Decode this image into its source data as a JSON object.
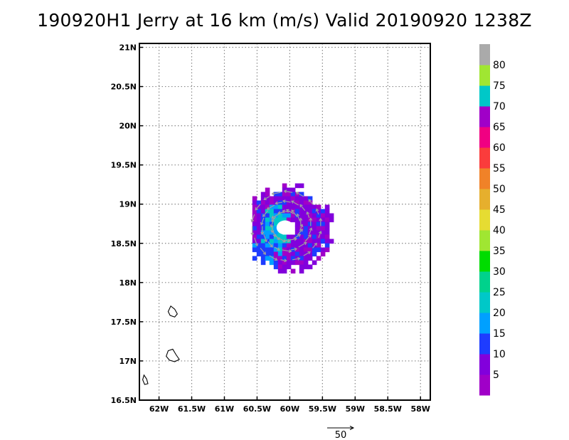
{
  "chart_data": {
    "type": "heatmap",
    "title": "190920H1 Jerry at 16 km (m/s) Valid 20190920  1238Z",
    "xlabel": "",
    "ylabel": "",
    "xlim": [
      -62.3,
      -57.85
    ],
    "ylim": [
      16.5,
      21.05
    ],
    "grid": true,
    "x_ticks": [
      {
        "value": -62.0,
        "label": "62W"
      },
      {
        "value": -61.5,
        "label": "61.5W"
      },
      {
        "value": -61.0,
        "label": "61W"
      },
      {
        "value": -60.5,
        "label": "60.5W"
      },
      {
        "value": -60.0,
        "label": "60W"
      },
      {
        "value": -59.5,
        "label": "59.5W"
      },
      {
        "value": -59.0,
        "label": "59W"
      },
      {
        "value": -58.5,
        "label": "58.5W"
      },
      {
        "value": -58.0,
        "label": "58W"
      }
    ],
    "y_ticks": [
      {
        "value": 16.5,
        "label": "16.5N"
      },
      {
        "value": 17.0,
        "label": "17N"
      },
      {
        "value": 17.5,
        "label": "17.5N"
      },
      {
        "value": 18.0,
        "label": "18N"
      },
      {
        "value": 18.5,
        "label": "18.5N"
      },
      {
        "value": 19.0,
        "label": "19N"
      },
      {
        "value": 19.5,
        "label": "19.5N"
      },
      {
        "value": 20.0,
        "label": "20N"
      },
      {
        "value": 20.5,
        "label": "20.5N"
      },
      {
        "value": 21.0,
        "label": "21N"
      }
    ],
    "colorbar": {
      "colors": [
        "#a000c8",
        "#8200dc",
        "#1e3cff",
        "#00a0ff",
        "#00c8c8",
        "#00d28c",
        "#00dc00",
        "#a0e632",
        "#e6dc32",
        "#e6af2d",
        "#f08228",
        "#fa3c3c",
        "#f00082",
        "#a000c8",
        "#00c8c8",
        "#a0e632",
        "#aaaaaa"
      ],
      "labels": [
        {
          "value": "5",
          "after_box": 1
        },
        {
          "value": "10",
          "after_box": 2
        },
        {
          "value": "15",
          "after_box": 3
        },
        {
          "value": "20",
          "after_box": 4
        },
        {
          "value": "25",
          "after_box": 5
        },
        {
          "value": "30",
          "after_box": 6
        },
        {
          "value": "35",
          "after_box": 7
        },
        {
          "value": "40",
          "after_box": 8
        },
        {
          "value": "45",
          "after_box": 9
        },
        {
          "value": "50",
          "after_box": 10
        },
        {
          "value": "55",
          "after_box": 11
        },
        {
          "value": "60",
          "after_box": 12
        },
        {
          "value": "65",
          "after_box": 13
        },
        {
          "value": "70",
          "after_box": 14
        },
        {
          "value": "75",
          "after_box": 15
        },
        {
          "value": "80",
          "after_box": 16
        }
      ]
    },
    "reference_vector": {
      "label": "50"
    },
    "storm_center": {
      "lon": -60.05,
      "lat": 18.72
    },
    "islands": [
      {
        "name": "island-1",
        "points": [
          [
            -61.82,
            17.7
          ],
          [
            -61.76,
            17.66
          ],
          [
            -61.72,
            17.6
          ],
          [
            -61.76,
            17.56
          ],
          [
            -61.83,
            17.58
          ],
          [
            -61.86,
            17.63
          ]
        ]
      },
      {
        "name": "island-2",
        "points": [
          [
            -61.86,
            17.13
          ],
          [
            -61.79,
            17.15
          ],
          [
            -61.74,
            17.08
          ],
          [
            -61.69,
            17.02
          ],
          [
            -61.76,
            16.99
          ],
          [
            -61.84,
            17.01
          ],
          [
            -61.89,
            17.06
          ]
        ]
      },
      {
        "name": "island-3",
        "points": [
          [
            -62.23,
            16.82
          ],
          [
            -62.19,
            16.77
          ],
          [
            -62.17,
            16.71
          ],
          [
            -62.22,
            16.7
          ],
          [
            -62.25,
            16.76
          ]
        ]
      }
    ]
  }
}
